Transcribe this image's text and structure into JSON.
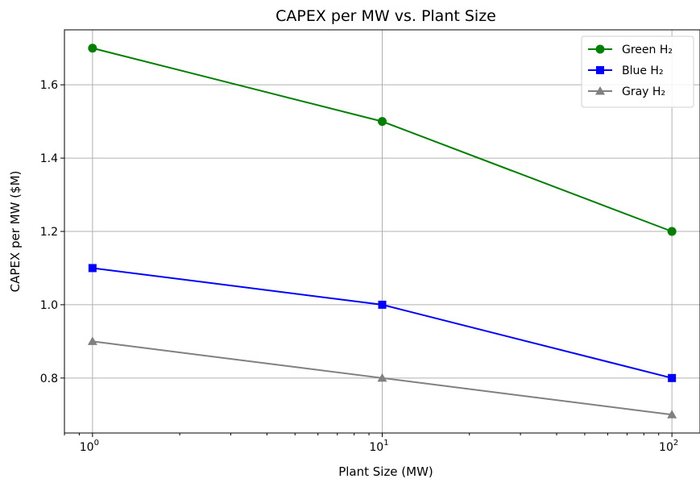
{
  "chart_data": {
    "type": "line",
    "title": "CAPEX per MW vs. Plant Size",
    "xlabel": "Plant Size (MW)",
    "ylabel": "CAPEX per MW ($M)",
    "x_scale": "log",
    "x": [
      1,
      10,
      100
    ],
    "xlim": [
      0.8,
      125
    ],
    "ylim": [
      0.65,
      1.75
    ],
    "x_major_ticks": [
      {
        "value": 1,
        "base": "10",
        "exp": "0"
      },
      {
        "value": 10,
        "base": "10",
        "exp": "1"
      },
      {
        "value": 100,
        "base": "10",
        "exp": "2"
      }
    ],
    "y_ticks": [
      0.8,
      1.0,
      1.2,
      1.4,
      1.6
    ],
    "y_tick_labels": [
      "0.8",
      "1.0",
      "1.2",
      "1.4",
      "1.6"
    ],
    "grid": true,
    "legend_position": "top-right",
    "series": [
      {
        "name": "Green H₂",
        "values": [
          1.7,
          1.5,
          1.2
        ],
        "color": "#008000",
        "marker": "circle"
      },
      {
        "name": "Blue H₂",
        "values": [
          1.1,
          1.0,
          0.8
        ],
        "color": "#0000ff",
        "marker": "square"
      },
      {
        "name": "Gray H₂",
        "values": [
          0.9,
          0.8,
          0.7
        ],
        "color": "#808080",
        "marker": "triangle"
      }
    ]
  }
}
